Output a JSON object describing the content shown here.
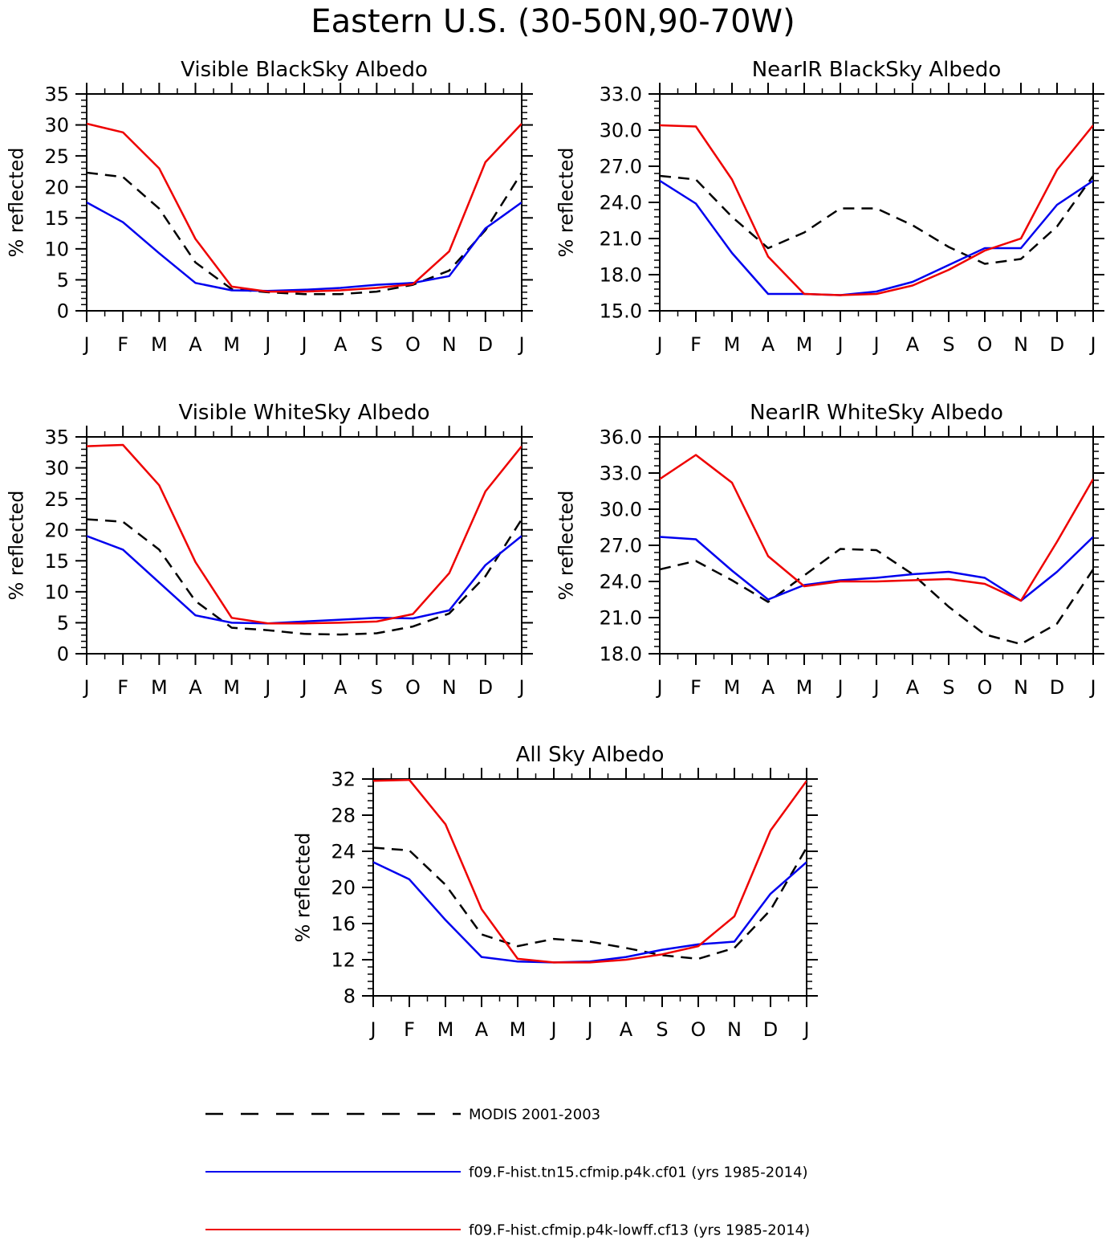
{
  "figure_title": "Eastern U.S. (30-50N,90-70W)",
  "colors": {
    "obs": "#000000",
    "model1": "#0000ee",
    "model2": "#ee0000",
    "axes": "#000000"
  },
  "legend": [
    {
      "key": "obs",
      "label": "MODIS 2001-2003",
      "style": "dashed"
    },
    {
      "key": "model1",
      "label": "f09.F-hist.tn15.cfmip.p4k.cf01 (yrs 1985-2014)",
      "style": "solid"
    },
    {
      "key": "model2",
      "label": "f09.F-hist.cfmip.p4k-lowff.cf13 (yrs 1985-2014)",
      "style": "solid"
    }
  ],
  "chart_data": [
    {
      "type": "line",
      "title": "Visible BlackSky Albedo",
      "ylabel": "% reflected",
      "categories": [
        "J",
        "F",
        "M",
        "A",
        "M",
        "J",
        "J",
        "A",
        "S",
        "O",
        "N",
        "D",
        "J"
      ],
      "ylim": [
        0,
        35
      ],
      "yticks": [
        "0",
        "5",
        "10",
        "15",
        "20",
        "25",
        "30",
        "35"
      ],
      "series": [
        {
          "key": "obs",
          "values": [
            22.3,
            21.6,
            16.5,
            7.8,
            3.5,
            3.0,
            2.7,
            2.7,
            3.1,
            4.2,
            6.5,
            13.0,
            22.3
          ]
        },
        {
          "key": "model1",
          "values": [
            17.5,
            14.3,
            9.3,
            4.5,
            3.3,
            3.2,
            3.4,
            3.7,
            4.2,
            4.5,
            5.6,
            13.3,
            17.5
          ]
        },
        {
          "key": "model2",
          "values": [
            30.2,
            28.8,
            23.0,
            11.6,
            3.9,
            3.1,
            3.1,
            3.3,
            3.7,
            4.3,
            9.6,
            24.0,
            30.2
          ]
        }
      ]
    },
    {
      "type": "line",
      "title": "NearIR BlackSky Albedo",
      "ylabel": "% reflected",
      "categories": [
        "J",
        "F",
        "M",
        "A",
        "M",
        "J",
        "J",
        "A",
        "S",
        "O",
        "N",
        "D",
        "J"
      ],
      "ylim": [
        15,
        33
      ],
      "yticks": [
        "15.0",
        "18.0",
        "21.0",
        "24.0",
        "27.0",
        "30.0",
        "33.0"
      ],
      "series": [
        {
          "key": "obs",
          "values": [
            26.2,
            25.9,
            22.8,
            20.2,
            21.5,
            23.5,
            23.5,
            22.1,
            20.3,
            18.9,
            19.3,
            22.0,
            26.2
          ]
        },
        {
          "key": "model1",
          "values": [
            25.8,
            23.9,
            19.8,
            16.4,
            16.4,
            16.3,
            16.6,
            17.4,
            18.8,
            20.2,
            20.2,
            23.8,
            25.8
          ]
        },
        {
          "key": "model2",
          "values": [
            30.4,
            30.3,
            25.9,
            19.5,
            16.4,
            16.3,
            16.4,
            17.1,
            18.4,
            20.0,
            21.0,
            26.7,
            30.4
          ]
        }
      ]
    },
    {
      "type": "line",
      "title": "Visible WhiteSky Albedo",
      "ylabel": "% reflected",
      "categories": [
        "J",
        "F",
        "M",
        "A",
        "M",
        "J",
        "J",
        "A",
        "S",
        "O",
        "N",
        "D",
        "J"
      ],
      "ylim": [
        0,
        35
      ],
      "yticks": [
        "0",
        "5",
        "10",
        "15",
        "20",
        "25",
        "30",
        "35"
      ],
      "series": [
        {
          "key": "obs",
          "values": [
            21.7,
            21.3,
            16.8,
            8.5,
            4.2,
            3.8,
            3.2,
            3.1,
            3.3,
            4.4,
            6.5,
            12.5,
            21.7
          ]
        },
        {
          "key": "model1",
          "values": [
            19.0,
            16.8,
            11.5,
            6.2,
            5.0,
            4.9,
            5.2,
            5.5,
            5.8,
            5.7,
            7.0,
            14.3,
            19.0
          ]
        },
        {
          "key": "model2",
          "values": [
            33.5,
            33.7,
            27.2,
            14.8,
            5.8,
            4.9,
            4.9,
            5.0,
            5.2,
            6.4,
            13.0,
            26.2,
            33.5
          ]
        }
      ]
    },
    {
      "type": "line",
      "title": "NearIR WhiteSky Albedo",
      "ylabel": "% reflected",
      "categories": [
        "J",
        "F",
        "M",
        "A",
        "M",
        "J",
        "J",
        "A",
        "S",
        "O",
        "N",
        "D",
        "J"
      ],
      "ylim": [
        18,
        36
      ],
      "yticks": [
        "18.0",
        "21.0",
        "24.0",
        "27.0",
        "30.0",
        "33.0",
        "36.0"
      ],
      "series": [
        {
          "key": "obs",
          "values": [
            25.0,
            25.7,
            24.1,
            22.3,
            24.5,
            26.7,
            26.6,
            24.6,
            21.9,
            19.6,
            18.8,
            20.5,
            25.0
          ]
        },
        {
          "key": "model1",
          "values": [
            27.7,
            27.5,
            24.9,
            22.5,
            23.7,
            24.1,
            24.3,
            24.6,
            24.8,
            24.3,
            22.4,
            24.8,
            27.7
          ]
        },
        {
          "key": "model2",
          "values": [
            32.5,
            34.5,
            32.2,
            26.1,
            23.6,
            24.0,
            24.0,
            24.1,
            24.2,
            23.8,
            22.4,
            27.3,
            32.5
          ]
        }
      ]
    },
    {
      "type": "line",
      "title": "All Sky Albedo",
      "ylabel": "% reflected",
      "categories": [
        "J",
        "F",
        "M",
        "A",
        "M",
        "J",
        "J",
        "A",
        "S",
        "O",
        "N",
        "D",
        "J"
      ],
      "ylim": [
        8,
        32
      ],
      "yticks": [
        "8",
        "12",
        "16",
        "20",
        "24",
        "28",
        "32"
      ],
      "series": [
        {
          "key": "obs",
          "values": [
            24.4,
            24.1,
            20.3,
            14.8,
            13.5,
            14.3,
            14.0,
            13.3,
            12.5,
            12.1,
            13.3,
            17.5,
            24.4
          ]
        },
        {
          "key": "model1",
          "values": [
            22.8,
            20.9,
            16.4,
            12.3,
            11.8,
            11.7,
            11.8,
            12.3,
            13.1,
            13.7,
            14.0,
            19.3,
            22.8
          ]
        },
        {
          "key": "model2",
          "values": [
            31.8,
            31.9,
            27.0,
            17.6,
            12.1,
            11.7,
            11.7,
            12.0,
            12.6,
            13.5,
            16.8,
            26.3,
            31.8
          ]
        }
      ]
    }
  ]
}
